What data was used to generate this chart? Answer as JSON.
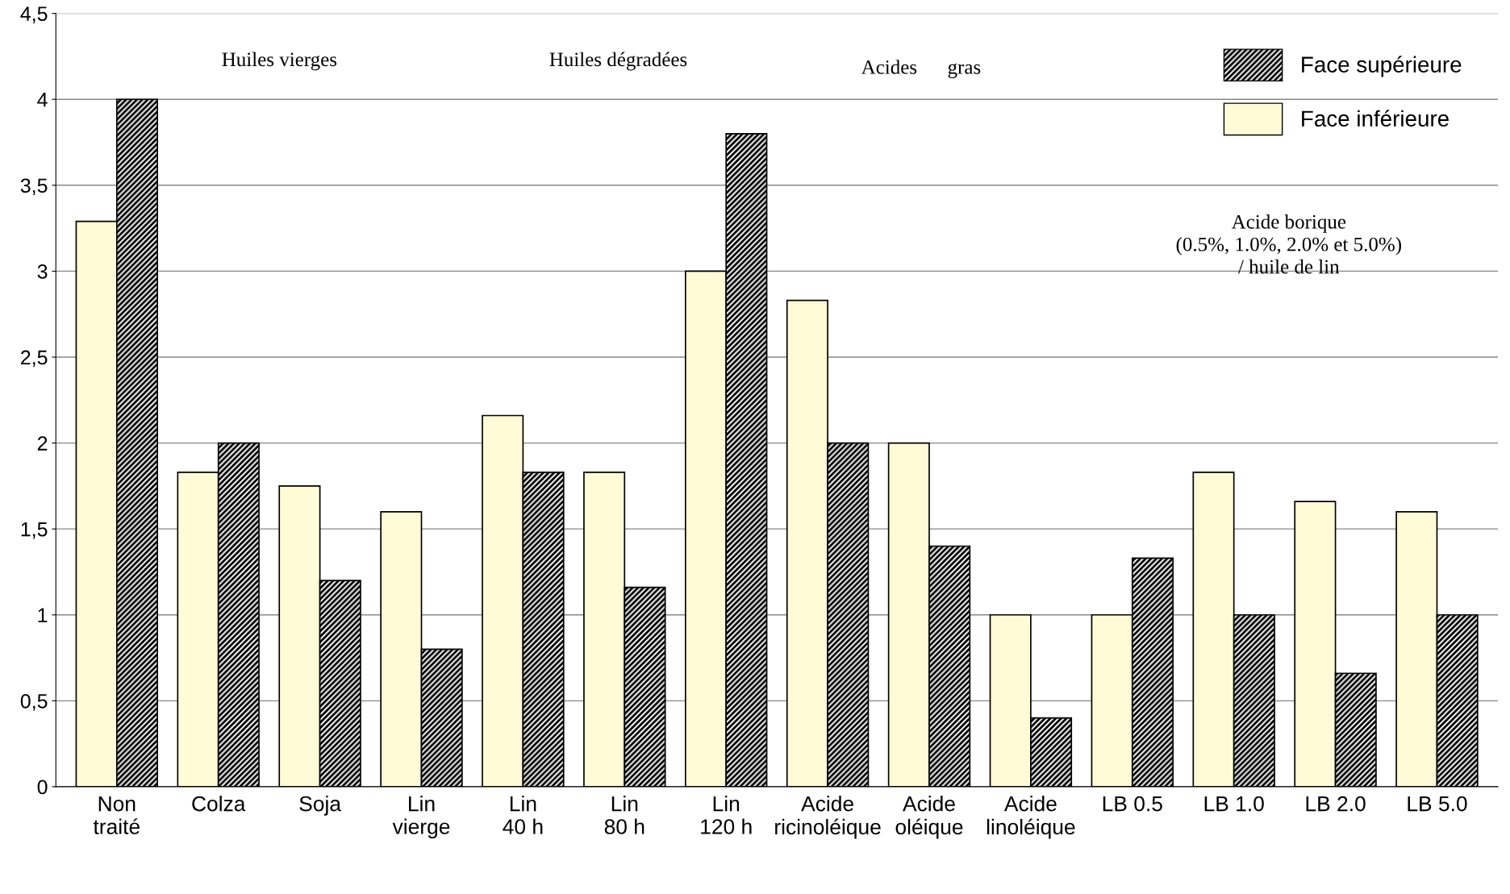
{
  "chart_data": {
    "type": "bar",
    "categories": [
      "Non\ntraité",
      "Colza",
      "Soja",
      "Lin\nvierge",
      "Lin\n40 h",
      "Lin\n80 h",
      "Lin\n120 h",
      "Acide\nricinoléique",
      "Acide\noléique",
      "Acide\nlinoléique",
      "LB 0.5",
      "LB 1.0",
      "LB 2.0",
      "LB 5.0"
    ],
    "series": [
      {
        "name": "Face inférieure",
        "color": "#fffbd6",
        "values": [
          3.29,
          1.83,
          1.75,
          1.6,
          2.16,
          1.83,
          3.0,
          2.83,
          2.0,
          1.0,
          1.0,
          1.83,
          1.66,
          1.6
        ]
      },
      {
        "name": "Face supérieure",
        "color": "#000000",
        "values": [
          4.0,
          2.0,
          1.2,
          0.8,
          1.83,
          1.16,
          3.8,
          2.0,
          1.4,
          0.4,
          1.33,
          1.0,
          0.66,
          1.0
        ]
      }
    ],
    "ylim": [
      0,
      4.5
    ],
    "yticks": [
      0,
      {
        "value": 0.5,
        "label": "0,5"
      },
      1,
      {
        "value": 1.5,
        "label": "1,5"
      },
      2,
      {
        "value": 2.5,
        "label": "2,5"
      },
      3,
      {
        "value": 3.5,
        "label": "3,5"
      },
      4,
      {
        "value": 4.5,
        "label": "4,5"
      }
    ],
    "grid": "y",
    "legend": "top right",
    "annotations": [
      "Huiles vierges",
      "Huiles dégradées",
      "Acides      gras",
      "Acide borique\n(0.5%, 1.0%, 2.0% et 5.0%)\n/ huile de lin"
    ]
  }
}
